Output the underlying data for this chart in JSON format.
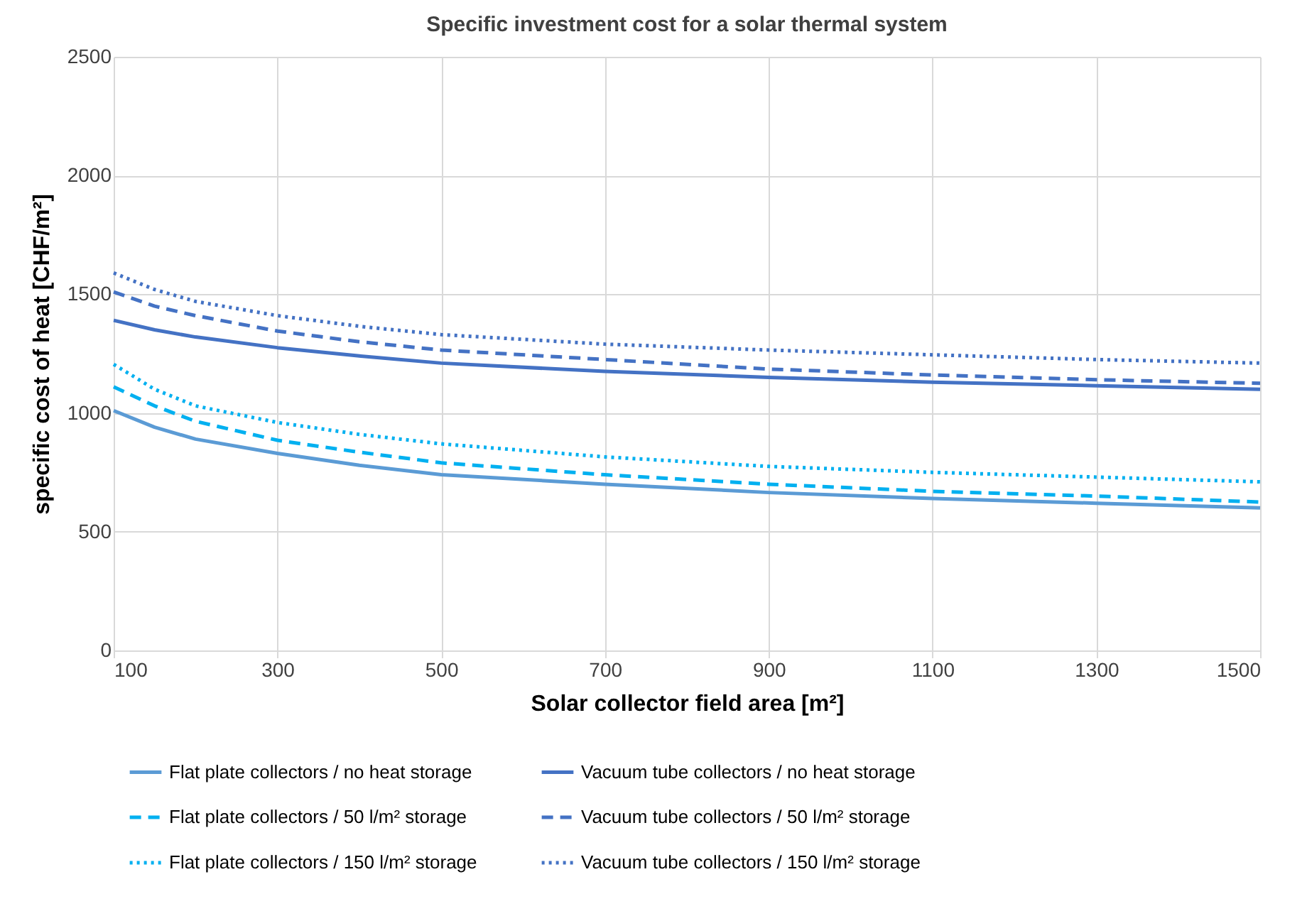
{
  "chart_data": {
    "type": "line",
    "title": "Specific investment cost for a solar thermal system",
    "xlabel": "Solar collector field area [m²]",
    "ylabel": "specific cost of heat [CHF/m²]",
    "x": [
      100,
      150,
      200,
      300,
      400,
      500,
      700,
      900,
      1100,
      1300,
      1500
    ],
    "series": [
      {
        "name": "Flat plate collectors / no heat storage",
        "color": "#5b9bd5",
        "line_style": "solid",
        "values": [
          1010,
          940,
          890,
          830,
          780,
          740,
          700,
          665,
          640,
          620,
          600
        ]
      },
      {
        "name": "Vacuum tube collectors / no heat storage",
        "color": "#4472c4",
        "line_style": "solid",
        "values": [
          1390,
          1350,
          1320,
          1275,
          1240,
          1210,
          1175,
          1150,
          1130,
          1115,
          1100
        ]
      },
      {
        "name": "Flat plate collectors / 50 l/m² storage",
        "color": "#00b0f0",
        "line_style": "dashed",
        "values": [
          1110,
          1030,
          965,
          885,
          835,
          790,
          740,
          700,
          670,
          650,
          625
        ]
      },
      {
        "name": "Vacuum tube collectors / 50 l/m² storage",
        "color": "#4472c4",
        "line_style": "dashed",
        "values": [
          1510,
          1450,
          1410,
          1345,
          1300,
          1265,
          1225,
          1185,
          1160,
          1140,
          1125
        ]
      },
      {
        "name": "Flat plate collectors / 150 l/m² storage",
        "color": "#00b0f0",
        "line_style": "dotted",
        "values": [
          1205,
          1100,
          1030,
          960,
          910,
          870,
          815,
          775,
          750,
          730,
          710
        ]
      },
      {
        "name": "Vacuum tube collectors / 150 l/m² storage",
        "color": "#4472c4",
        "line_style": "dotted",
        "values": [
          1590,
          1520,
          1470,
          1410,
          1365,
          1330,
          1290,
          1265,
          1245,
          1225,
          1210
        ]
      }
    ],
    "xlim": [
      100,
      1500
    ],
    "xticks": [
      100,
      300,
      500,
      700,
      900,
      1100,
      1300,
      1500
    ],
    "ylim": [
      0,
      2500
    ],
    "yticks": [
      0,
      500,
      1000,
      1500,
      2000,
      2500
    ],
    "grid": true,
    "legend": "bottom",
    "marker": "none"
  }
}
